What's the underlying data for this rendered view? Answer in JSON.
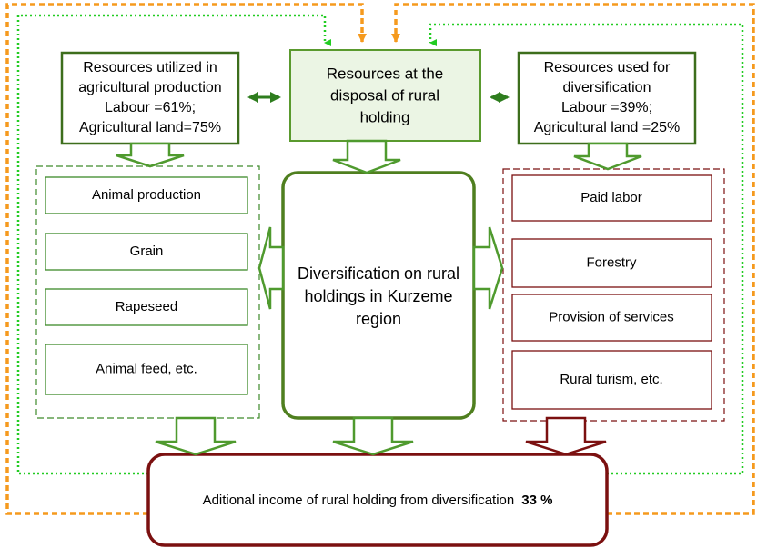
{
  "boxes": {
    "agricultural": {
      "lines": [
        "Resources utilized in",
        "agricultural production",
        "Labour =61%;",
        "Agricultural land=75%"
      ]
    },
    "disposal": {
      "lines": [
        "Resources at the",
        "disposal of rural",
        "holding"
      ]
    },
    "diversification_resources": {
      "lines": [
        "Resources used for",
        "diversification",
        "Labour =39%;",
        "Agricultural land =25%"
      ]
    },
    "center": {
      "lines": [
        "Diversification on rural",
        "holdings in Kurzeme",
        "region"
      ]
    },
    "income": {
      "text": "Aditional income of rural holding from diversification",
      "value": "33 %"
    }
  },
  "agricultural_items": [
    "Animal production",
    "Grain",
    "Rapeseed",
    "Animal feed, etc."
  ],
  "diversification_items": [
    "Paid labor",
    "Forestry",
    "Provision of services",
    "Rural turism, etc."
  ]
}
